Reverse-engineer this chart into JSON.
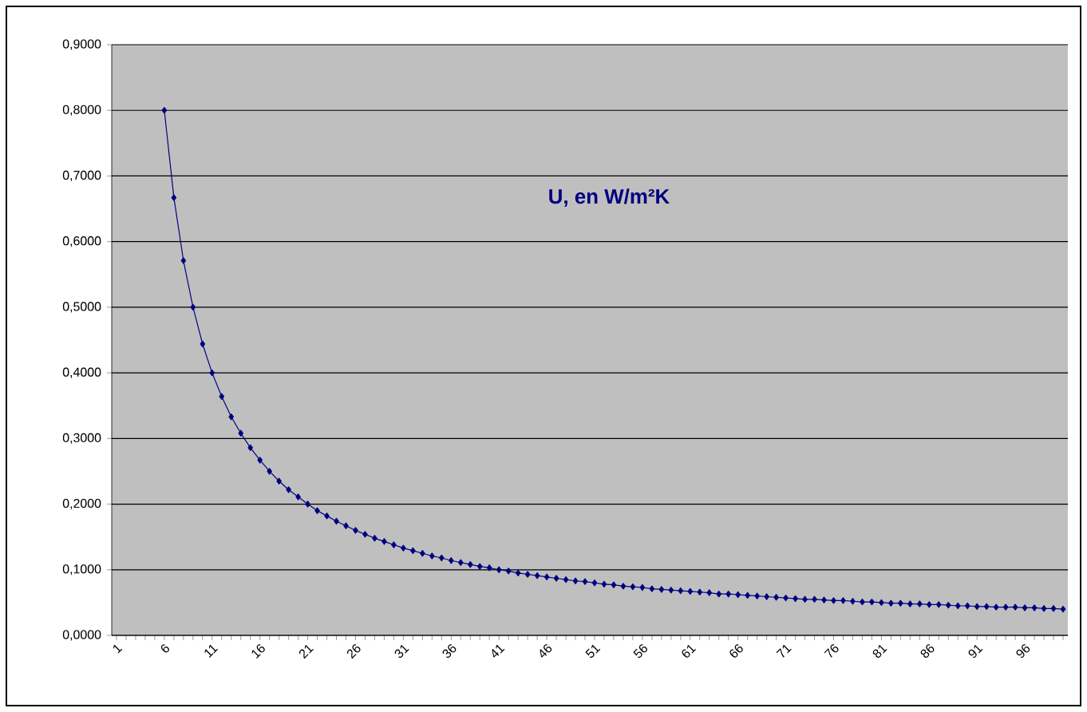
{
  "chart_data": {
    "type": "line",
    "title": "U, en W/m²K",
    "categories": [
      "1",
      null,
      null,
      null,
      null,
      "6",
      null,
      null,
      null,
      null,
      "11",
      null,
      null,
      null,
      null,
      "16",
      null,
      null,
      null,
      null,
      "21",
      null,
      null,
      null,
      null,
      "26",
      null,
      null,
      null,
      null,
      "31",
      null,
      null,
      null,
      null,
      "36",
      null,
      null,
      null,
      null,
      "41",
      null,
      null,
      null,
      null,
      "46",
      null,
      null,
      null,
      null,
      "51",
      null,
      null,
      null,
      null,
      "56",
      null,
      null,
      null,
      null,
      "61",
      null,
      null,
      null,
      null,
      "66",
      null,
      null,
      null,
      null,
      "71",
      null,
      null,
      null,
      null,
      "76",
      null,
      null,
      null,
      null,
      "81",
      null,
      null,
      null,
      null,
      "86",
      null,
      null,
      null,
      null,
      "91",
      null,
      null,
      null,
      null,
      "96",
      null,
      null,
      null,
      null
    ],
    "values": [
      null,
      null,
      null,
      null,
      null,
      0.8,
      0.667,
      0.571,
      0.5,
      0.444,
      0.4,
      0.364,
      0.333,
      0.308,
      0.286,
      0.267,
      0.25,
      0.235,
      0.222,
      0.211,
      0.2,
      0.19,
      0.182,
      0.174,
      0.167,
      0.16,
      0.154,
      0.148,
      0.143,
      0.138,
      0.133,
      0.129,
      0.125,
      0.121,
      0.118,
      0.114,
      0.111,
      0.108,
      0.105,
      0.103,
      0.1,
      0.098,
      0.095,
      0.093,
      0.091,
      0.089,
      0.087,
      0.085,
      0.083,
      0.082,
      0.08,
      0.078,
      0.077,
      0.075,
      0.074,
      0.073,
      0.071,
      0.07,
      0.069,
      0.068,
      0.067,
      0.066,
      0.065,
      0.063,
      0.063,
      0.062,
      0.061,
      0.06,
      0.059,
      0.058,
      0.057,
      0.056,
      0.055,
      0.055,
      0.054,
      0.053,
      0.053,
      0.052,
      0.051,
      0.051,
      0.05,
      0.049,
      0.049,
      0.048,
      0.048,
      0.047,
      0.047,
      0.046,
      0.045,
      0.045,
      0.044,
      0.044,
      0.043,
      0.043,
      0.043,
      0.042,
      0.042,
      0.041,
      0.041,
      0.04
    ],
    "color": "#000080",
    "ylim": [
      0,
      0.9
    ],
    "yticks": [
      {
        "value": 0,
        "label": "0,0000"
      },
      {
        "value": 0.1,
        "label": "0,1000"
      },
      {
        "value": 0.2,
        "label": "0,2000"
      },
      {
        "value": 0.3,
        "label": "0,3000"
      },
      {
        "value": 0.4,
        "label": "0,4000"
      },
      {
        "value": 0.5,
        "label": "0,5000"
      },
      {
        "value": 0.6,
        "label": "0,6000"
      },
      {
        "value": 0.7,
        "label": "0,7000"
      },
      {
        "value": 0.8,
        "label": "0,8000"
      },
      {
        "value": 0.9,
        "label": "0,9000"
      }
    ],
    "grid": "y",
    "marker": "diamond",
    "line_style": "solid"
  }
}
